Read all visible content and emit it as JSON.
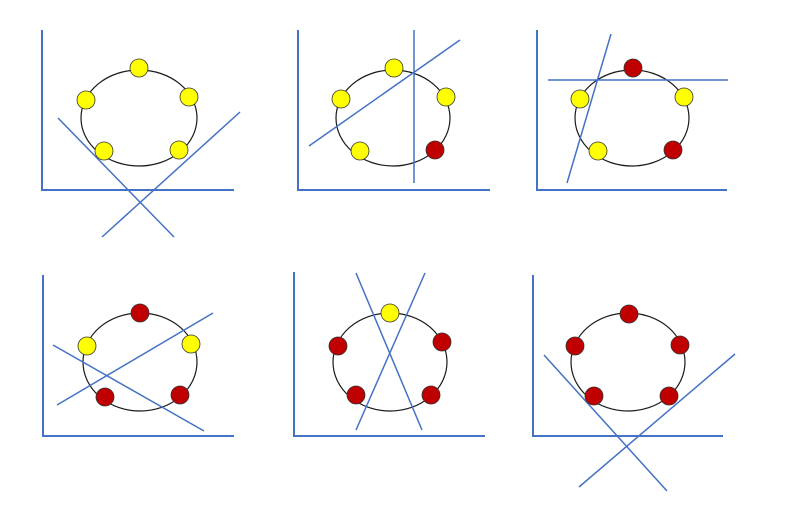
{
  "colors": {
    "yellow": "#FFFF00",
    "red": "#C00000",
    "line": "#4472C4",
    "circle": "#1a1a1a"
  },
  "panels": [
    {
      "point_colors": [
        "yellow",
        "yellow",
        "yellow",
        "yellow",
        "yellow"
      ],
      "separating_lines": 2
    },
    {
      "point_colors": [
        "yellow",
        "yellow",
        "yellow",
        "yellow",
        "red"
      ],
      "separating_lines": 2
    },
    {
      "point_colors": [
        "red",
        "yellow",
        "yellow",
        "yellow",
        "red"
      ],
      "separating_lines": 2
    },
    {
      "point_colors": [
        "red",
        "yellow",
        "yellow",
        "red",
        "red"
      ],
      "separating_lines": 2
    },
    {
      "point_colors": [
        "yellow",
        "red",
        "red",
        "red",
        "red"
      ],
      "separating_lines": 2
    },
    {
      "point_colors": [
        "red",
        "red",
        "red",
        "red",
        "red"
      ],
      "separating_lines": 2
    }
  ]
}
